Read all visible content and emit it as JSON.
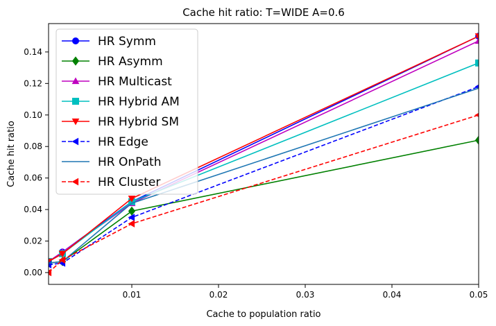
{
  "chart_data": {
    "type": "line",
    "title": "Cache hit ratio: T=WIDE A=0.6",
    "xlabel": "Cache to population ratio",
    "ylabel": "Cache hit ratio",
    "xlim": [
      0.0004,
      0.05
    ],
    "ylim": [
      -0.0075,
      0.158
    ],
    "x_ticks": [
      0.01,
      0.02,
      0.03,
      0.04,
      0.05
    ],
    "x_tick_labels": [
      "0.01",
      "0.02",
      "0.03",
      "0.04",
      "0.05"
    ],
    "y_ticks": [
      0,
      0.02,
      0.04,
      0.06,
      0.08,
      0.1,
      0.12,
      0.14
    ],
    "y_tick_labels": [
      "0.00",
      "0.02",
      "0.04",
      "0.06",
      "0.08",
      "0.10",
      "0.12",
      "0.14"
    ],
    "grid": false,
    "legend_position": "top-left",
    "x": [
      0.0004,
      0.002,
      0.01,
      0.05
    ],
    "series": [
      {
        "name": "HR Symm",
        "values": [
          0.007,
          0.013,
          0.045,
          0.15
        ],
        "color": "#0000ff",
        "marker": "circle",
        "dash": false
      },
      {
        "name": "HR Asymm",
        "values": [
          0.006,
          0.007,
          0.039,
          0.084
        ],
        "color": "#008000",
        "marker": "diamond",
        "dash": false
      },
      {
        "name": "HR Multicast",
        "values": [
          0.007,
          0.013,
          0.044,
          0.147
        ],
        "color": "#bf00bf",
        "marker": "triangle-up",
        "dash": false
      },
      {
        "name": "HR Hybrid AM",
        "values": [
          0.007,
          0.012,
          0.045,
          0.133
        ],
        "color": "#00bfbf",
        "marker": "square",
        "dash": false
      },
      {
        "name": "HR Hybrid SM",
        "values": [
          0.007,
          0.012,
          0.047,
          0.15
        ],
        "color": "#ff0000",
        "marker": "triangle-down",
        "dash": false
      },
      {
        "name": "HR Edge",
        "values": [
          0.005,
          0.006,
          0.035,
          0.118
        ],
        "color": "#0000ff",
        "marker": "triangle-left",
        "dash": true
      },
      {
        "name": "HR OnPath",
        "values": [
          0.006,
          0.007,
          0.044,
          0.117
        ],
        "color": "#1f77b4",
        "marker": "none",
        "dash": false
      },
      {
        "name": "HR Cluster",
        "values": [
          0.0,
          0.008,
          0.031,
          0.1
        ],
        "color": "#ff0000",
        "marker": "triangle-left",
        "dash": true
      }
    ]
  }
}
